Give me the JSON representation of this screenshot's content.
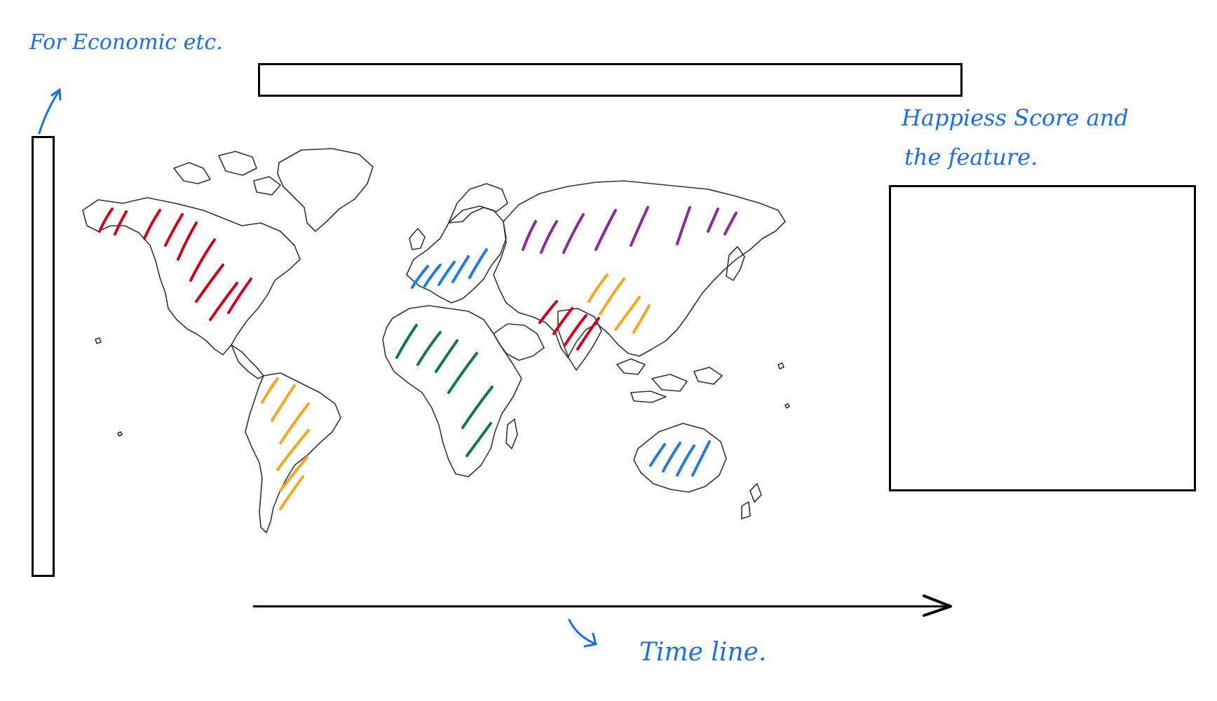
{
  "annotations": {
    "sidebar_note": "For Economic etc.",
    "panel_note_line1": "Happiess Score and",
    "panel_note_line2": "the feature.",
    "timeline_label": "Time line."
  },
  "colors": {
    "ink": "#000000",
    "annotation": "#1a6fe8",
    "coast": "#333333",
    "red": "#d0021b",
    "purple": "#8b2a9b",
    "blue": "#1f7de0",
    "orange": "#f5a623",
    "green": "#0f7a4a"
  },
  "icons": {
    "timeline_arrow": "right-arrow-icon",
    "sidebar_pointer": "up-arrow-icon",
    "timeline_pointer": "down-right-arrow-icon"
  }
}
